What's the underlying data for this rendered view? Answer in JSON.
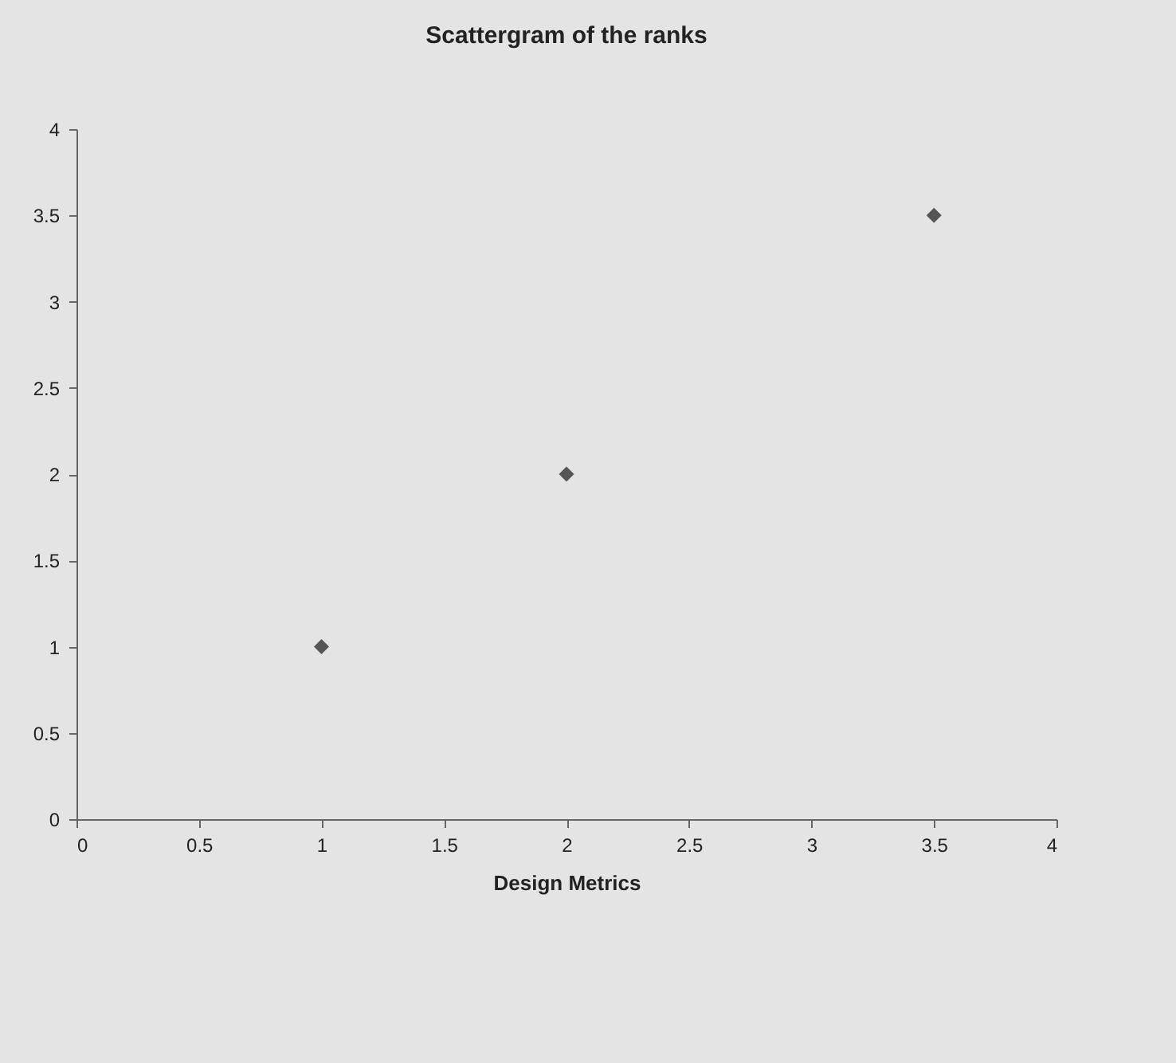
{
  "chart_data": {
    "type": "scatter",
    "title": "Scattergram of the ranks",
    "xlabel": "Design Metrics",
    "x": [
      1,
      2,
      3.5
    ],
    "values": [
      1,
      2,
      3.5
    ],
    "color": "#555555",
    "marker": "diamond",
    "grid": false,
    "xlim": [
      0,
      4
    ],
    "xticks": [
      0,
      0.5,
      1,
      1.5,
      2,
      2.5,
      3,
      3.5,
      4
    ],
    "ylim": [
      0,
      4
    ],
    "yticks": [
      0,
      0.5,
      1,
      1.5,
      2,
      2.5,
      3,
      3.5,
      4
    ]
  }
}
